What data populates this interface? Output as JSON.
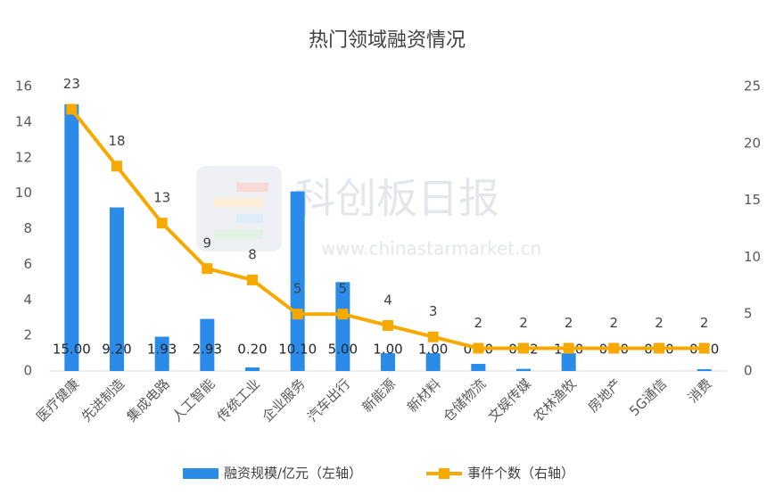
{
  "chart_data": {
    "type": "bar-line",
    "title": "热门领域融资情况",
    "watermark": "科创板日报",
    "watermark_url": "www.chinastarmarket.cn",
    "categories": [
      "医疗健康",
      "先进制造",
      "集成电路",
      "人工智能",
      "传统工业",
      "企业服务",
      "汽车出行",
      "新能源",
      "新材料",
      "仓储物流",
      "文娱传媒",
      "农林渔牧",
      "房地产",
      "5G通信",
      "消费"
    ],
    "series": [
      {
        "name": "融资规模/亿元（左轴）",
        "type": "bar",
        "color": "#2a8be9",
        "values": [
          15.0,
          9.2,
          1.93,
          2.93,
          0.2,
          10.1,
          5.0,
          1.0,
          1.0,
          0.4,
          0.12,
          1.0,
          0.0,
          0.0,
          0.1
        ],
        "value_labels": [
          "15.00",
          "9.20",
          "1.93",
          "2.93",
          "0.20",
          "10.10",
          "5.00",
          "1.00",
          "1.00",
          "0.40",
          "0.12",
          "1.00",
          "0.00",
          "0.00",
          "0.10"
        ]
      },
      {
        "name": "事件个数（右轴）",
        "type": "line",
        "axis": "y2",
        "color": "#f7a900",
        "values": [
          23,
          18,
          13,
          9,
          8,
          5,
          5,
          4,
          3,
          2,
          2,
          2,
          2,
          2,
          2
        ]
      }
    ],
    "ylim": [
      0,
      16
    ],
    "yticks": [
      0,
      2,
      4,
      6,
      8,
      10,
      12,
      14,
      16
    ],
    "y2lim": [
      0,
      25
    ],
    "y2ticks": [
      0,
      5,
      10,
      15,
      20,
      25
    ],
    "grid": false,
    "legend": "bottom"
  }
}
